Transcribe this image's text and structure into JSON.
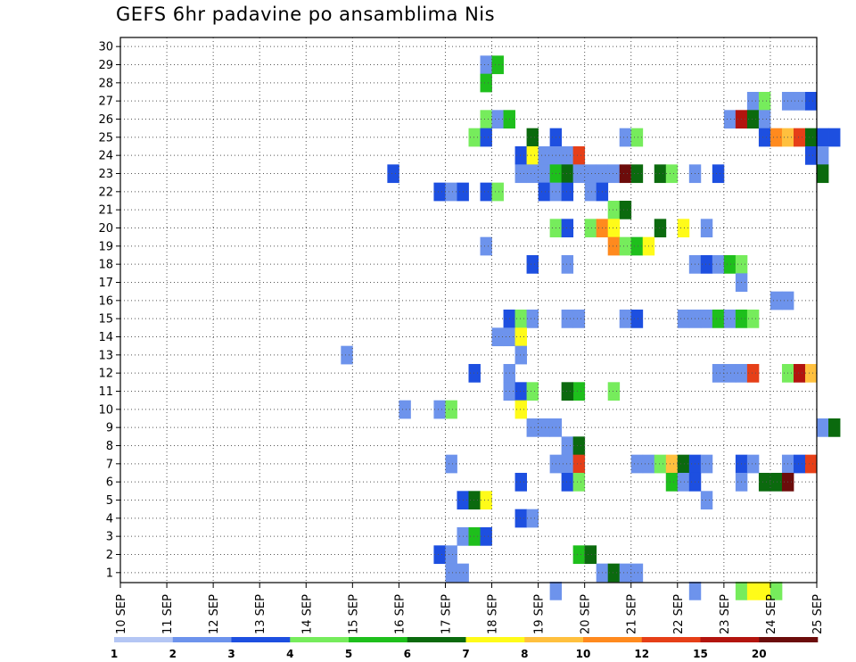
{
  "chart_data": {
    "type": "heatmap",
    "title": "GEFS 6hr padavine po ansamblima Nis",
    "xlabel": "",
    "ylabel": "",
    "x_ticks": [
      "10 SEP",
      "11 SEP",
      "12 SEP",
      "13 SEP",
      "14 SEP",
      "15 SEP",
      "16 SEP",
      "17 SEP",
      "18 SEP",
      "19 SEP",
      "20 SEP",
      "21 SEP",
      "22 SEP",
      "23 SEP",
      "24 SEP",
      "25 SEP"
    ],
    "y_ticks": [
      "1",
      "2",
      "3",
      "4",
      "5",
      "6",
      "7",
      "8",
      "9",
      "10",
      "11",
      "12",
      "13",
      "14",
      "15",
      "16",
      "17",
      "18",
      "19",
      "20",
      "21",
      "22",
      "23",
      "24",
      "25",
      "26",
      "27",
      "28",
      "29",
      "30"
    ],
    "xlim_days": [
      0,
      15
    ],
    "ylim": [
      0,
      30
    ],
    "steps_per_day": 4,
    "grid": true,
    "colorbar": {
      "labels": [
        "1",
        "2",
        "3",
        "4",
        "5",
        "6",
        "7",
        "8",
        "10",
        "12",
        "15",
        "20"
      ],
      "colors": [
        "#b4c6f4",
        "#6d93ec",
        "#1d4fe0",
        "#76ec5c",
        "#1ebf1c",
        "#0b6a0e",
        "#fffb19",
        "#ffc03e",
        "#ff8a1e",
        "#e63f18",
        "#b3140e",
        "#6c0c0b"
      ]
    },
    "cells": [
      [
        31,
        28,
        1
      ],
      [
        32,
        28,
        4
      ],
      [
        31,
        27,
        4
      ],
      [
        54,
        26,
        1
      ],
      [
        55,
        26,
        3
      ],
      [
        57,
        26,
        1
      ],
      [
        58,
        26,
        1
      ],
      [
        59,
        26,
        2
      ],
      [
        31,
        25,
        3
      ],
      [
        32,
        25,
        1
      ],
      [
        33,
        25,
        4
      ],
      [
        52,
        25,
        1
      ],
      [
        53,
        25,
        10
      ],
      [
        54,
        25,
        5
      ],
      [
        55,
        25,
        1
      ],
      [
        30,
        24,
        3
      ],
      [
        31,
        24,
        2
      ],
      [
        35,
        24,
        5
      ],
      [
        37,
        24,
        2
      ],
      [
        43,
        24,
        1
      ],
      [
        44,
        24,
        3
      ],
      [
        55,
        24,
        2
      ],
      [
        56,
        24,
        8
      ],
      [
        57,
        24,
        7
      ],
      [
        58,
        24,
        9
      ],
      [
        59,
        24,
        5
      ],
      [
        60,
        24,
        2
      ],
      [
        61,
        24,
        2
      ],
      [
        34,
        23,
        2
      ],
      [
        35,
        23,
        6
      ],
      [
        36,
        23,
        1
      ],
      [
        37,
        23,
        1
      ],
      [
        38,
        23,
        1
      ],
      [
        39,
        23,
        9
      ],
      [
        59,
        23,
        2
      ],
      [
        60,
        23,
        1
      ],
      [
        23,
        22,
        2
      ],
      [
        34,
        22,
        1
      ],
      [
        35,
        22,
        1
      ],
      [
        36,
        22,
        1
      ],
      [
        37,
        22,
        4
      ],
      [
        38,
        22,
        5
      ],
      [
        39,
        22,
        1
      ],
      [
        40,
        22,
        1
      ],
      [
        41,
        22,
        1
      ],
      [
        42,
        22,
        1
      ],
      [
        43,
        22,
        11
      ],
      [
        44,
        22,
        5
      ],
      [
        46,
        22,
        5
      ],
      [
        47,
        22,
        3
      ],
      [
        49,
        22,
        1
      ],
      [
        51,
        22,
        2
      ],
      [
        60,
        22,
        5
      ],
      [
        27,
        21,
        2
      ],
      [
        28,
        21,
        1
      ],
      [
        29,
        21,
        2
      ],
      [
        31,
        21,
        2
      ],
      [
        32,
        21,
        3
      ],
      [
        36,
        21,
        2
      ],
      [
        37,
        21,
        1
      ],
      [
        38,
        21,
        2
      ],
      [
        40,
        21,
        1
      ],
      [
        41,
        21,
        2
      ],
      [
        42,
        20,
        3
      ],
      [
        43,
        20,
        5
      ],
      [
        37,
        19,
        3
      ],
      [
        38,
        19,
        2
      ],
      [
        40,
        19,
        3
      ],
      [
        41,
        19,
        8
      ],
      [
        42,
        19,
        6
      ],
      [
        46,
        19,
        5
      ],
      [
        48,
        19,
        6
      ],
      [
        50,
        19,
        1
      ],
      [
        31,
        18,
        1
      ],
      [
        42,
        18,
        8
      ],
      [
        43,
        18,
        3
      ],
      [
        44,
        18,
        4
      ],
      [
        45,
        18,
        6
      ],
      [
        35,
        17,
        2
      ],
      [
        38,
        17,
        1
      ],
      [
        49,
        17,
        1
      ],
      [
        50,
        17,
        2
      ],
      [
        51,
        17,
        1
      ],
      [
        52,
        17,
        4
      ],
      [
        53,
        17,
        3
      ],
      [
        53,
        16,
        1
      ],
      [
        56,
        15,
        1
      ],
      [
        57,
        15,
        1
      ],
      [
        33,
        14,
        2
      ],
      [
        34,
        14,
        3
      ],
      [
        35,
        14,
        1
      ],
      [
        38,
        14,
        1
      ],
      [
        39,
        14,
        1
      ],
      [
        43,
        14,
        1
      ],
      [
        44,
        14,
        2
      ],
      [
        48,
        14,
        1
      ],
      [
        49,
        14,
        1
      ],
      [
        50,
        14,
        1
      ],
      [
        51,
        14,
        4
      ],
      [
        52,
        14,
        1
      ],
      [
        53,
        14,
        4
      ],
      [
        54,
        14,
        3
      ],
      [
        32,
        13,
        1
      ],
      [
        33,
        13,
        1
      ],
      [
        34,
        13,
        6
      ],
      [
        34,
        12,
        1
      ],
      [
        19,
        12,
        1
      ],
      [
        30,
        11,
        2
      ],
      [
        33,
        11,
        1
      ],
      [
        51,
        11,
        1
      ],
      [
        52,
        11,
        1
      ],
      [
        53,
        11,
        1
      ],
      [
        54,
        11,
        9
      ],
      [
        57,
        11,
        3
      ],
      [
        58,
        11,
        10
      ],
      [
        59,
        11,
        7
      ],
      [
        33,
        10,
        1
      ],
      [
        34,
        10,
        2
      ],
      [
        35,
        10,
        3
      ],
      [
        39,
        10,
        4
      ],
      [
        38,
        10,
        5
      ],
      [
        42,
        10,
        3
      ],
      [
        24,
        9,
        1
      ],
      [
        27,
        9,
        1
      ],
      [
        28,
        9,
        3
      ],
      [
        34,
        9,
        6
      ],
      [
        35,
        8,
        1
      ],
      [
        36,
        8,
        1
      ],
      [
        37,
        8,
        1
      ],
      [
        60,
        8,
        1
      ],
      [
        61,
        8,
        5
      ],
      [
        38,
        7,
        1
      ],
      [
        39,
        7,
        5
      ],
      [
        28,
        6,
        1
      ],
      [
        37,
        6,
        1
      ],
      [
        38,
        6,
        1
      ],
      [
        39,
        6,
        9
      ],
      [
        44,
        6,
        1
      ],
      [
        45,
        6,
        1
      ],
      [
        46,
        6,
        3
      ],
      [
        47,
        6,
        7
      ],
      [
        48,
        6,
        5
      ],
      [
        49,
        6,
        2
      ],
      [
        50,
        6,
        1
      ],
      [
        53,
        6,
        2
      ],
      [
        54,
        6,
        1
      ],
      [
        57,
        6,
        1
      ],
      [
        58,
        6,
        2
      ],
      [
        59,
        6,
        9
      ],
      [
        34,
        5,
        2
      ],
      [
        38,
        5,
        2
      ],
      [
        39,
        5,
        3
      ],
      [
        47,
        5,
        4
      ],
      [
        48,
        5,
        1
      ],
      [
        49,
        5,
        2
      ],
      [
        53,
        5,
        1
      ],
      [
        55,
        5,
        5
      ],
      [
        56,
        5,
        5
      ],
      [
        57,
        5,
        11
      ],
      [
        29,
        4,
        2
      ],
      [
        30,
        4,
        5
      ],
      [
        31,
        4,
        6
      ],
      [
        50,
        4,
        1
      ],
      [
        34,
        3,
        2
      ],
      [
        35,
        3,
        1
      ],
      [
        29,
        2,
        1
      ],
      [
        30,
        2,
        4
      ],
      [
        31,
        2,
        2
      ],
      [
        27,
        1,
        2
      ],
      [
        28,
        1,
        1
      ],
      [
        39,
        1,
        4
      ],
      [
        40,
        1,
        5
      ],
      [
        28,
        0,
        1
      ],
      [
        29,
        0,
        1
      ],
      [
        41,
        0,
        1
      ],
      [
        42,
        0,
        5
      ],
      [
        43,
        0,
        1
      ],
      [
        44,
        0,
        1
      ],
      [
        37,
        -1,
        1
      ],
      [
        49,
        -1,
        1
      ],
      [
        53,
        -1,
        3
      ],
      [
        54,
        -1,
        6
      ],
      [
        55,
        -1,
        6
      ],
      [
        56,
        -1,
        3
      ]
    ]
  }
}
